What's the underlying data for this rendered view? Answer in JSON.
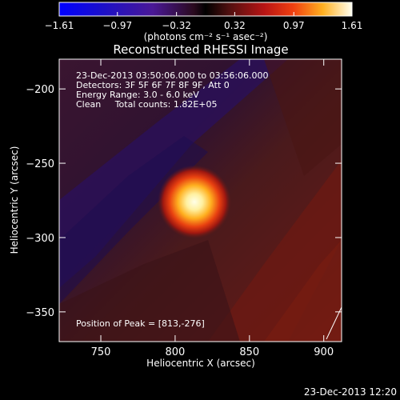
{
  "colorbar": {
    "ticks": [
      "-1.61",
      "-0.97",
      "-0.32",
      "0.32",
      "0.97",
      "1.61"
    ],
    "unit_label": "(photons cm⁻² s⁻¹ asec⁻²)",
    "range": [
      -1.61,
      1.61
    ]
  },
  "image": {
    "title": "Reconstructed RHESSI Image",
    "info_lines": [
      "23-Dec-2013 03:50:06.000 to 03:56:06.000",
      "Detectors: 3F 5F 6F 7F 8F 9F, Att 0",
      "Energy Range: 3.0 - 6.0 keV",
      "Clean     Total counts: 1.82E+05"
    ],
    "peak_text": "Position of Peak = [813,-276]"
  },
  "chart_data": {
    "type": "heatmap",
    "title": "Reconstructed RHESSI Image",
    "xlabel": "Heliocentric X (arcsec)",
    "ylabel": "Heliocentric Y (arcsec)",
    "xlim": [
      722,
      912
    ],
    "ylim": [
      -370,
      -180
    ],
    "xticks": [
      750,
      800,
      850,
      900
    ],
    "yticks": [
      -200,
      -250,
      -300,
      -350
    ],
    "peak": {
      "x": 813,
      "y": -276,
      "value": 1.61
    },
    "zrange": [
      -1.61,
      1.61
    ]
  },
  "footer": {
    "timestamp": "23-Dec-2013 12:20"
  }
}
